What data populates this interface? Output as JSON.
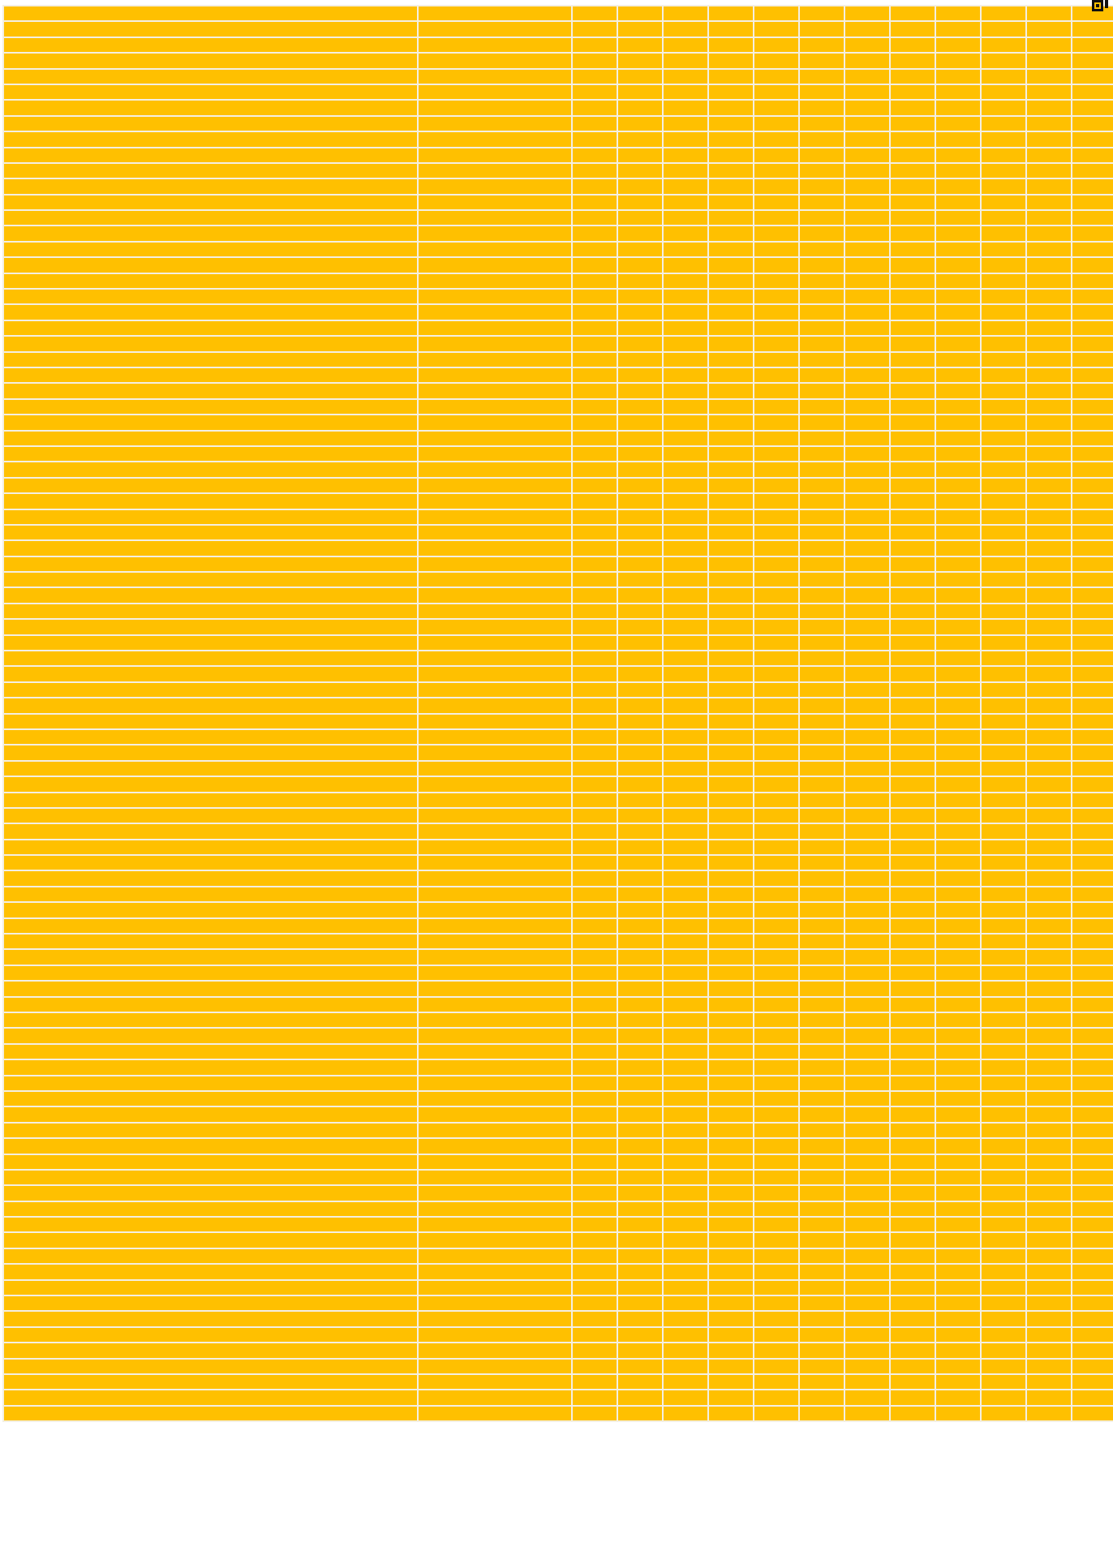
{
  "sheet": {
    "fill_color": "#ffc000",
    "gridline_color": "#f4efe2",
    "row_count": 90,
    "column_count": 16
  },
  "corner": {
    "icon": "frame-icon"
  },
  "side_label": {
    "text": ""
  }
}
